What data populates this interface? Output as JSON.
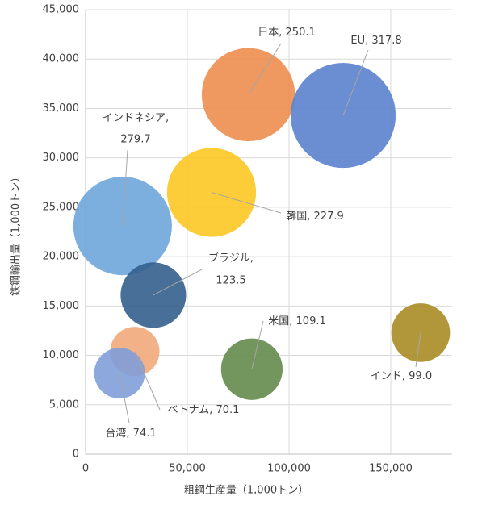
{
  "chart_data": {
    "type": "bubble",
    "xlabel": "粗鋼生産量（1,000トン）",
    "ylabel": "鉄鋼輸出量（1,000トン）",
    "xlim": [
      0,
      180000
    ],
    "ylim": [
      0,
      45000
    ],
    "xticks": [
      0,
      {
        "value": 50000,
        "label": "50,000"
      },
      {
        "value": 100000,
        "label": "100,000"
      },
      {
        "value": 150000,
        "label": "150,000"
      }
    ],
    "yticks": [
      0,
      {
        "value": 5000,
        "label": "5,000"
      },
      {
        "value": 10000,
        "label": "10,000"
      },
      {
        "value": 15000,
        "label": "15,000"
      },
      {
        "value": 20000,
        "label": "20,000"
      },
      {
        "value": 25000,
        "label": "25,000"
      },
      {
        "value": 30000,
        "label": "30,000"
      },
      {
        "value": 35000,
        "label": "35,000"
      },
      {
        "value": 40000,
        "label": "40,000"
      },
      {
        "value": 45000,
        "label": "45,000"
      }
    ],
    "grid": true,
    "series": [
      {
        "name": "日本",
        "color": "#ed8d4f",
        "x": [
          80000
        ],
        "values": [
          36400
        ],
        "sizes": [
          250.1
        ],
        "size_labels": [
          "250.1"
        ]
      },
      {
        "name": "EU",
        "color": "#5a82cc",
        "x": [
          126600
        ],
        "values": [
          34300
        ],
        "sizes": [
          317.8
        ],
        "size_labels": [
          "317.8"
        ]
      },
      {
        "name": "韓国",
        "color": "#fdc623",
        "x": [
          61900
        ],
        "values": [
          26500
        ],
        "sizes": [
          227.9
        ],
        "size_labels": [
          "227.9"
        ]
      },
      {
        "name": "インドネシア",
        "color": "#6ea6da",
        "x": [
          18200
        ],
        "values": [
          23100
        ],
        "sizes": [
          279.7
        ],
        "size_labels": [
          "279.7"
        ]
      },
      {
        "name": "ブラジル",
        "color": "#335f8d",
        "x": [
          33300
        ],
        "values": [
          16100
        ],
        "sizes": [
          123.5
        ],
        "size_labels": [
          "123.5"
        ]
      },
      {
        "name": "米国",
        "color": "#648a4d",
        "x": [
          81700
        ],
        "values": [
          8600
        ],
        "sizes": [
          109.1
        ],
        "size_labels": [
          "109.1"
        ]
      },
      {
        "name": "インド",
        "color": "#a88c25",
        "x": [
          164700
        ],
        "values": [
          12300
        ],
        "sizes": [
          99.0
        ],
        "size_labels": [
          "99.0"
        ]
      },
      {
        "name": "ベトナム",
        "color": "#f2a97b",
        "x": [
          24200
        ],
        "values": [
          10400
        ],
        "sizes": [
          70.1
        ],
        "size_labels": [
          "70.1"
        ]
      },
      {
        "name": "台湾",
        "color": "#7f9fd9",
        "x": [
          16700
        ],
        "values": [
          8200
        ],
        "sizes": [
          74.1
        ],
        "size_labels": [
          "74.1"
        ]
      }
    ]
  }
}
